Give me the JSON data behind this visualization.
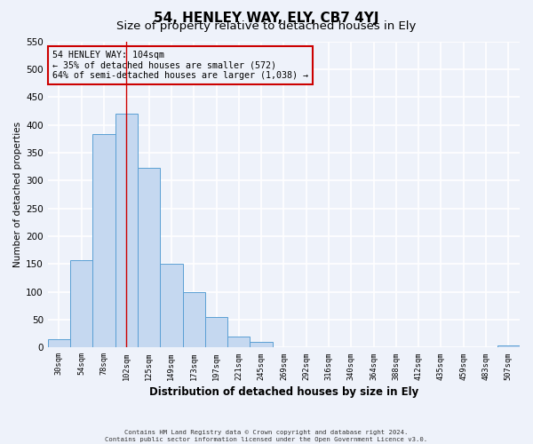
{
  "title": "54, HENLEY WAY, ELY, CB7 4YJ",
  "subtitle": "Size of property relative to detached houses in Ely",
  "xlabel": "Distribution of detached houses by size in Ely",
  "ylabel": "Number of detached properties",
  "bar_labels": [
    "30sqm",
    "54sqm",
    "78sqm",
    "102sqm",
    "125sqm",
    "149sqm",
    "173sqm",
    "197sqm",
    "221sqm",
    "245sqm",
    "269sqm",
    "292sqm",
    "316sqm",
    "340sqm",
    "364sqm",
    "388sqm",
    "412sqm",
    "435sqm",
    "459sqm",
    "483sqm",
    "507sqm"
  ],
  "bar_values": [
    15,
    157,
    383,
    420,
    322,
    150,
    100,
    55,
    20,
    10,
    0,
    0,
    0,
    0,
    0,
    0,
    0,
    0,
    0,
    0,
    3
  ],
  "bar_color": "#c5d8f0",
  "bar_edge_color": "#5a9fd4",
  "ylim": [
    0,
    550
  ],
  "yticks": [
    0,
    50,
    100,
    150,
    200,
    250,
    300,
    350,
    400,
    450,
    500,
    550
  ],
  "property_line_x": 3,
  "annotation_line1": "54 HENLEY WAY: 104sqm",
  "annotation_line2": "← 35% of detached houses are smaller (572)",
  "annotation_line3": "64% of semi-detached houses are larger (1,038) →",
  "annotation_box_color": "#cc0000",
  "footer_line1": "Contains HM Land Registry data © Crown copyright and database right 2024.",
  "footer_line2": "Contains public sector information licensed under the Open Government Licence v3.0.",
  "background_color": "#eef2fa",
  "grid_color": "#ffffff",
  "title_fontsize": 11,
  "subtitle_fontsize": 9.5
}
